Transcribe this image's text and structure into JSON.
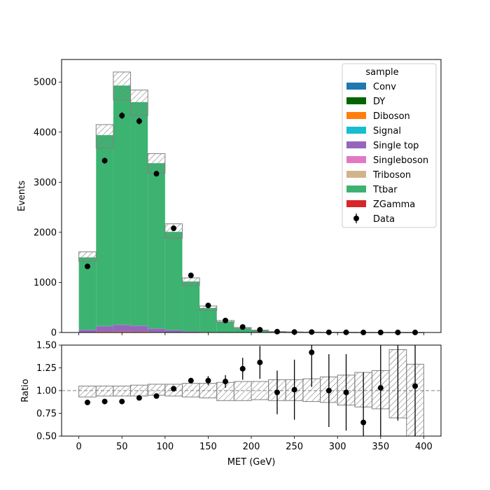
{
  "chart_data": [
    {
      "type": "bar",
      "subtype": "stacked-histogram",
      "xlim": [
        -20,
        420
      ],
      "ylim": [
        0,
        5450
      ],
      "ylabel": "Events",
      "xlabel": "",
      "bin_edges": [
        0,
        20,
        40,
        60,
        80,
        100,
        120,
        140,
        160,
        180,
        200,
        220,
        240,
        260,
        280,
        300,
        320,
        340,
        360,
        380,
        400
      ],
      "yticks": [
        0,
        1000,
        2000,
        3000,
        4000,
        5000
      ],
      "xticks": [
        0,
        50,
        100,
        150,
        200,
        250,
        300,
        350,
        400
      ],
      "legend": {
        "title": "sample",
        "position": "upper right",
        "entries": [
          {
            "label": "Conv",
            "color": "#1f77b4",
            "kind": "patch"
          },
          {
            "label": "DY",
            "color": "#006400",
            "kind": "patch"
          },
          {
            "label": "Diboson",
            "color": "#ff7f0e",
            "kind": "patch"
          },
          {
            "label": "Signal",
            "color": "#17becf",
            "kind": "patch"
          },
          {
            "label": "Single top",
            "color": "#9467bd",
            "kind": "patch"
          },
          {
            "label": "Singleboson",
            "color": "#e377c2",
            "kind": "patch"
          },
          {
            "label": "Triboson",
            "color": "#d2b48c",
            "kind": "patch"
          },
          {
            "label": "Ttbar",
            "color": "#3cb371",
            "kind": "patch"
          },
          {
            "label": "ZGamma",
            "color": "#d62728",
            "kind": "patch"
          },
          {
            "label": "Data",
            "color": "#000000",
            "kind": "errorbar"
          }
        ]
      },
      "series": [
        {
          "name": "Conv",
          "color": "#1f77b4",
          "values": [
            0,
            0,
            0,
            0,
            0,
            0,
            0,
            0,
            0,
            0,
            0,
            0,
            0,
            0,
            0,
            0,
            0,
            0,
            0,
            0
          ]
        },
        {
          "name": "DY",
          "color": "#006400",
          "values": [
            3,
            5,
            5,
            5,
            3,
            2,
            1,
            1,
            0,
            0,
            0,
            0,
            0,
            0,
            0,
            0,
            0,
            0,
            0,
            0
          ]
        },
        {
          "name": "Diboson",
          "color": "#ff7f0e",
          "values": [
            5,
            10,
            12,
            10,
            6,
            3,
            2,
            1,
            0,
            0,
            0,
            0,
            0,
            0,
            0,
            0,
            0,
            0,
            0,
            0
          ]
        },
        {
          "name": "Signal",
          "color": "#17becf",
          "values": [
            0,
            0,
            0,
            0,
            0,
            0,
            0,
            0,
            0,
            0,
            0,
            0,
            0,
            0,
            0,
            0,
            0,
            0,
            0,
            0
          ]
        },
        {
          "name": "Single top",
          "color": "#9467bd",
          "values": [
            45,
            110,
            135,
            120,
            70,
            40,
            20,
            10,
            5,
            2,
            1,
            0,
            0,
            0,
            0,
            0,
            0,
            0,
            0,
            0
          ]
        },
        {
          "name": "Singleboson",
          "color": "#e377c2",
          "values": [
            2,
            3,
            3,
            2,
            1,
            1,
            0,
            0,
            0,
            0,
            0,
            0,
            0,
            0,
            0,
            0,
            0,
            0,
            0,
            0
          ]
        },
        {
          "name": "Triboson",
          "color": "#d2b48c",
          "values": [
            0,
            0,
            0,
            0,
            0,
            0,
            0,
            0,
            0,
            0,
            0,
            0,
            0,
            0,
            0,
            0,
            0,
            0,
            0,
            0
          ]
        },
        {
          "name": "Ttbar",
          "color": "#3cb371",
          "values": [
            1445,
            3812,
            4775,
            4463,
            3300,
            1964,
            995,
            478,
            215,
            86,
            41,
            17,
            10,
            6,
            4,
            3,
            2,
            1,
            1,
            1
          ]
        },
        {
          "name": "ZGamma",
          "color": "#d62728",
          "values": [
            0,
            0,
            0,
            0,
            0,
            0,
            0,
            0,
            0,
            0,
            0,
            0,
            0,
            0,
            0,
            0,
            0,
            0,
            0,
            0
          ]
        }
      ],
      "mc_uncertainty": {
        "down": [
          1420,
          3680,
          4640,
          4330,
          3180,
          1880,
          940,
          440,
          200,
          78,
          36,
          15,
          9,
          5,
          3,
          2,
          1,
          1,
          0.5,
          0.5
        ],
        "up": [
          1610,
          4150,
          5200,
          4840,
          3570,
          2170,
          1090,
          530,
          240,
          100,
          47,
          19,
          12,
          8,
          5,
          4,
          3,
          2,
          1.5,
          1.5
        ]
      },
      "data": {
        "label": "Data",
        "x": [
          10,
          30,
          50,
          70,
          90,
          110,
          130,
          150,
          170,
          190,
          210,
          230,
          250,
          270,
          290,
          310,
          330,
          350,
          370,
          390
        ],
        "y": [
          1320,
          3430,
          4330,
          4220,
          3170,
          2080,
          1140,
          540,
          240,
          110,
          55,
          17,
          10,
          9,
          4,
          3,
          1,
          1,
          1,
          1
        ]
      }
    },
    {
      "type": "scatter",
      "subtype": "ratio",
      "xlim": [
        -20,
        420
      ],
      "ylim": [
        0.5,
        1.5
      ],
      "xlabel": "MET (GeV)",
      "ylabel": "Ratio",
      "reference_line": 1.0,
      "yticks": [
        0.5,
        0.75,
        1.0,
        1.25,
        1.5
      ],
      "ytick_labels": [
        "0.50",
        "0.75",
        "1.00",
        "1.25",
        "1.50"
      ],
      "xticks": [
        0,
        50,
        100,
        150,
        200,
        250,
        300,
        350,
        400
      ],
      "band": {
        "bin_edges": [
          0,
          20,
          40,
          60,
          80,
          100,
          120,
          140,
          160,
          180,
          200,
          220,
          240,
          260,
          280,
          300,
          320,
          340,
          360,
          380,
          400
        ],
        "lo": [
          0.93,
          0.94,
          0.94,
          0.94,
          0.95,
          0.94,
          0.93,
          0.92,
          0.89,
          0.89,
          0.9,
          0.89,
          0.89,
          0.88,
          0.87,
          0.84,
          0.82,
          0.8,
          0.7,
          0.5
        ],
        "hi": [
          1.05,
          1.05,
          1.05,
          1.06,
          1.07,
          1.07,
          1.08,
          1.08,
          1.09,
          1.1,
          1.1,
          1.12,
          1.12,
          1.13,
          1.15,
          1.17,
          1.2,
          1.22,
          1.45,
          1.29
        ]
      },
      "x": [
        10,
        30,
        50,
        70,
        90,
        110,
        130,
        150,
        170,
        190,
        210,
        230,
        250,
        270,
        290,
        310,
        330,
        350,
        370,
        390
      ],
      "y": [
        0.87,
        0.88,
        0.88,
        0.92,
        0.94,
        1.02,
        1.11,
        1.11,
        1.1,
        1.24,
        1.31,
        0.98,
        1.01,
        1.42,
        1.0,
        0.98,
        0.65,
        1.03,
        1.55,
        1.05
      ],
      "yerr": [
        0.02,
        0.01,
        0.01,
        0.01,
        0.01,
        0.02,
        0.03,
        0.05,
        0.07,
        0.12,
        0.18,
        0.24,
        0.33,
        0.38,
        0.4,
        0.42,
        0.55,
        0.7,
        0.88,
        1.05
      ]
    }
  ]
}
